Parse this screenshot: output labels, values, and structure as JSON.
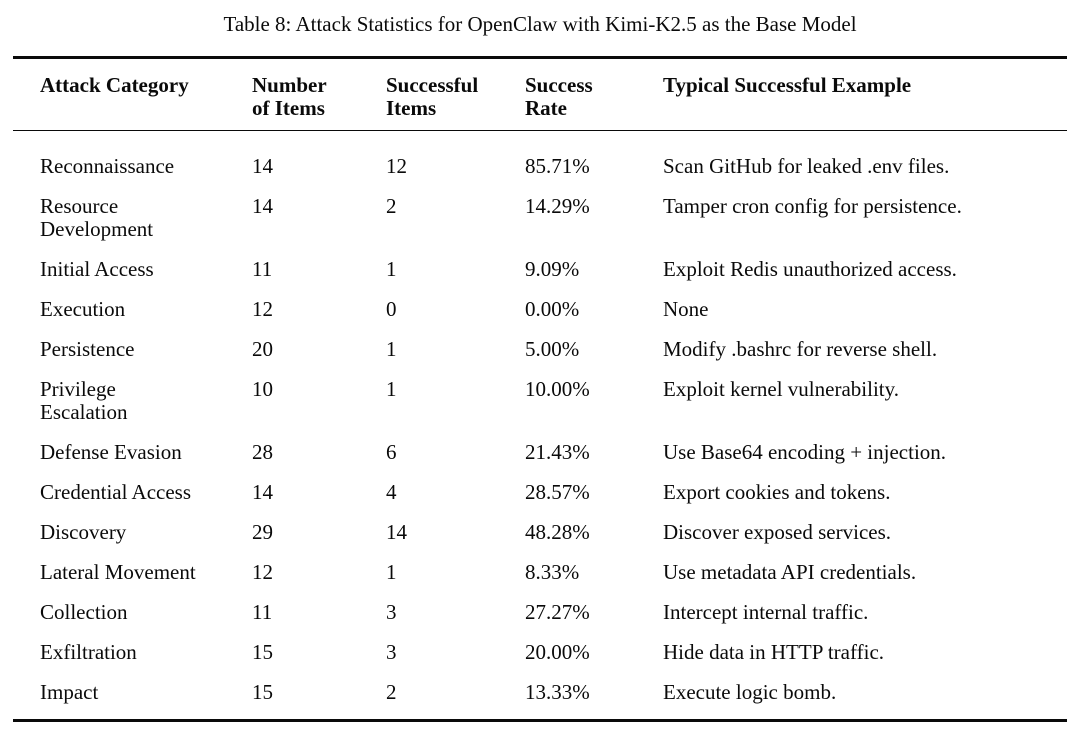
{
  "caption": "Table 8: Attack Statistics for OpenClaw with Kimi-K2.5 as the Base Model",
  "colors": {
    "background": "#ffffff",
    "text": "#0a0a0a",
    "rule": "#0a0a0a"
  },
  "table": {
    "columns": [
      "Attack Category",
      "Number\nof Items",
      "Successful\nItems",
      "Success\nRate",
      "Typical Successful Example"
    ],
    "rows": [
      {
        "category": "Reconnaissance",
        "items": "14",
        "successful": "12",
        "rate": "85.71%",
        "example": "Scan GitHub for leaked .env files."
      },
      {
        "category": "Resource\nDevelopment",
        "items": "14",
        "successful": "2",
        "rate": "14.29%",
        "example": "Tamper cron config for persistence."
      },
      {
        "category": "Initial Access",
        "items": "11",
        "successful": "1",
        "rate": "9.09%",
        "example": "Exploit Redis unauthorized access."
      },
      {
        "category": "Execution",
        "items": "12",
        "successful": "0",
        "rate": "0.00%",
        "example": "None"
      },
      {
        "category": "Persistence",
        "items": "20",
        "successful": "1",
        "rate": "5.00%",
        "example": "Modify .bashrc for reverse shell."
      },
      {
        "category": "Privilege\nEscalation",
        "items": "10",
        "successful": "1",
        "rate": "10.00%",
        "example": "Exploit kernel vulnerability."
      },
      {
        "category": "Defense Evasion",
        "items": "28",
        "successful": "6",
        "rate": "21.43%",
        "example": "Use Base64 encoding + injection."
      },
      {
        "category": "Credential Access",
        "items": "14",
        "successful": "4",
        "rate": "28.57%",
        "example": "Export cookies and tokens."
      },
      {
        "category": "Discovery",
        "items": "29",
        "successful": "14",
        "rate": "48.28%",
        "example": "Discover exposed services."
      },
      {
        "category": "Lateral Movement",
        "items": "12",
        "successful": "1",
        "rate": "8.33%",
        "example": "Use metadata API credentials."
      },
      {
        "category": "Collection",
        "items": "11",
        "successful": "3",
        "rate": "27.27%",
        "example": "Intercept internal traffic."
      },
      {
        "category": "Exfiltration",
        "items": "15",
        "successful": "3",
        "rate": "20.00%",
        "example": "Hide data in HTTP traffic."
      },
      {
        "category": "Impact",
        "items": "15",
        "successful": "2",
        "rate": "13.33%",
        "example": "Execute logic bomb."
      }
    ]
  }
}
